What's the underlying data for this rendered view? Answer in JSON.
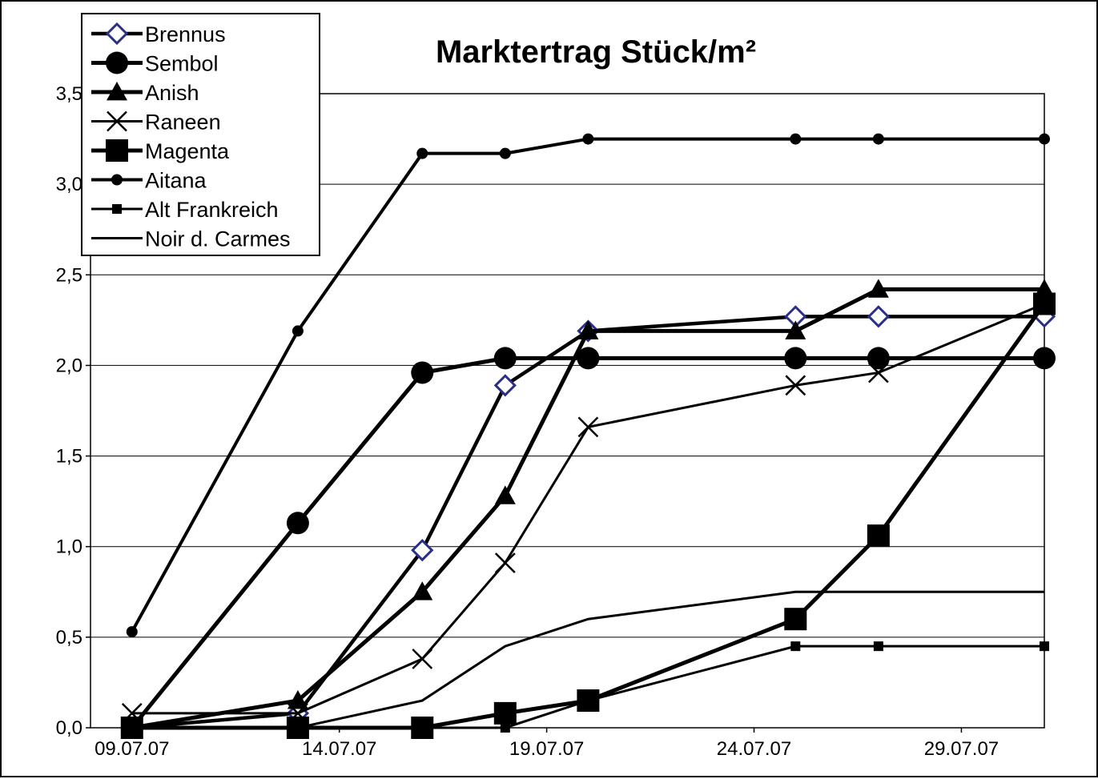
{
  "chart_data": {
    "type": "line",
    "title": "Marktertrag Stück/m²",
    "xlabel": "",
    "ylabel": "",
    "x_tick_labels": [
      "09.07.07",
      "14.07.07",
      "19.07.07",
      "24.07.07",
      "29.07.07"
    ],
    "x_tick_values": [
      "2007-07-09",
      "2007-07-14",
      "2007-07-19",
      "2007-07-24",
      "2007-07-29"
    ],
    "x_range": [
      "2007-07-08",
      "2007-07-31"
    ],
    "y_tick_labels": [
      "0,0",
      "0,5",
      "1,0",
      "1,5",
      "2,0",
      "2,5",
      "3,0",
      "3,5"
    ],
    "ylim": [
      0,
      3.5
    ],
    "grid": "horizontal",
    "legend_position": "top-left",
    "x": [
      "2007-07-09",
      "2007-07-13",
      "2007-07-16",
      "2007-07-18",
      "2007-07-20",
      "2007-07-25",
      "2007-07-27",
      "2007-07-31"
    ],
    "series": [
      {
        "name": "Brennus",
        "marker": "diamond",
        "values": [
          0.0,
          0.08,
          0.98,
          1.89,
          2.19,
          2.27,
          2.27,
          2.27
        ]
      },
      {
        "name": "Sembol",
        "marker": "circle",
        "values": [
          0.0,
          1.13,
          1.96,
          2.04,
          2.04,
          2.04,
          2.04,
          2.04
        ]
      },
      {
        "name": "Anish",
        "marker": "triangle",
        "values": [
          0.0,
          0.15,
          0.75,
          1.28,
          2.19,
          2.19,
          2.42,
          2.42
        ]
      },
      {
        "name": "Raneen",
        "marker": "x",
        "values": [
          0.08,
          0.08,
          0.38,
          0.91,
          1.66,
          1.89,
          1.96,
          2.34
        ]
      },
      {
        "name": "Magenta",
        "marker": "square",
        "values": [
          0.0,
          0.0,
          0.0,
          0.08,
          0.15,
          0.6,
          1.06,
          2.34
        ]
      },
      {
        "name": "Aitana",
        "marker": "small-circle",
        "values": [
          0.53,
          2.19,
          3.17,
          3.17,
          3.25,
          3.25,
          3.25,
          3.25
        ]
      },
      {
        "name": "Alt Frankreich",
        "marker": "small-square",
        "values": [
          0.0,
          0.0,
          0.0,
          0.0,
          0.15,
          0.45,
          0.45,
          0.45
        ]
      },
      {
        "name": "Noir d. Carmes",
        "marker": "none",
        "values": [
          0.0,
          0.0,
          0.15,
          0.45,
          0.6,
          0.75,
          0.75,
          0.75
        ]
      }
    ]
  }
}
